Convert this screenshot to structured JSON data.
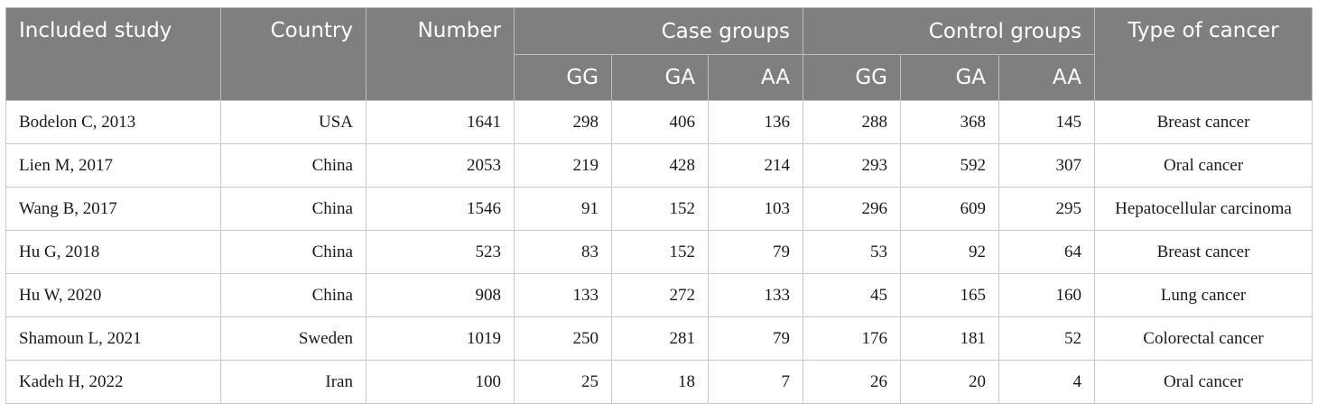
{
  "headers": {
    "study": "Included study",
    "country": "Country",
    "number": "Number",
    "case_groups": "Case groups",
    "control_groups": "Control groups",
    "type": "Type of cancer",
    "genotypes": [
      "GG",
      "GA",
      "AA",
      "GG",
      "GA",
      "AA"
    ]
  },
  "rows": [
    {
      "study": "Bodelon C, 2013",
      "country": "USA",
      "number": "1641",
      "case": [
        "298",
        "406",
        "136"
      ],
      "control": [
        "288",
        "368",
        "145"
      ],
      "type": "Breast cancer"
    },
    {
      "study": "Lien M, 2017",
      "country": "China",
      "number": "2053",
      "case": [
        "219",
        "428",
        "214"
      ],
      "control": [
        "293",
        "592",
        "307"
      ],
      "type": "Oral cancer"
    },
    {
      "study": "Wang B, 2017",
      "country": "China",
      "number": "1546",
      "case": [
        "91",
        "152",
        "103"
      ],
      "control": [
        "296",
        "609",
        "295"
      ],
      "type": "Hepatocellular carcinoma"
    },
    {
      "study": "Hu G, 2018",
      "country": "China",
      "number": "523",
      "case": [
        "83",
        "152",
        "79"
      ],
      "control": [
        "53",
        "92",
        "64"
      ],
      "type": "Breast cancer"
    },
    {
      "study": "Hu W, 2020",
      "country": "China",
      "number": "908",
      "case": [
        "133",
        "272",
        "133"
      ],
      "control": [
        "45",
        "165",
        "160"
      ],
      "type": "Lung cancer"
    },
    {
      "study": "Shamoun L, 2021",
      "country": "Sweden",
      "number": "1019",
      "case": [
        "250",
        "281",
        "79"
      ],
      "control": [
        "176",
        "181",
        "52"
      ],
      "type": "Colorectal cancer"
    },
    {
      "study": "Kadeh H, 2022",
      "country": "Iran",
      "number": "100",
      "case": [
        "25",
        "18",
        "7"
      ],
      "control": [
        "26",
        "20",
        "4"
      ],
      "type": "Oral cancer"
    }
  ]
}
